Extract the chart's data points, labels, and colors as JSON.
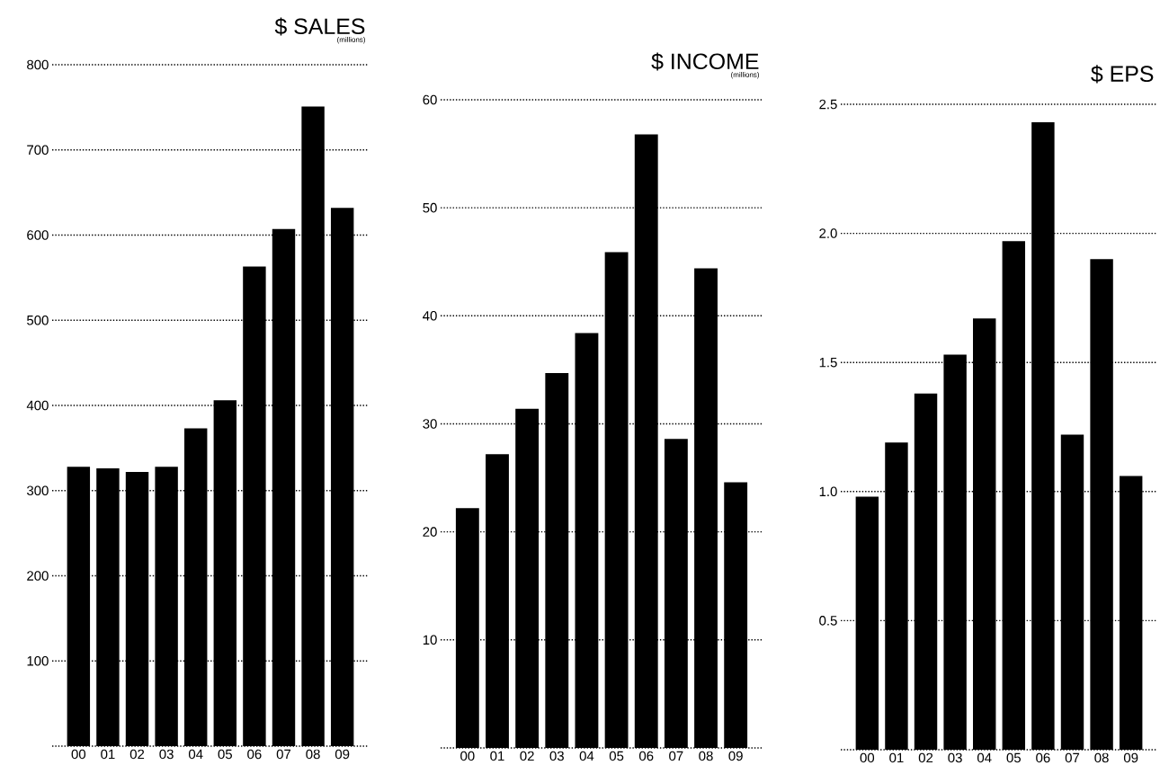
{
  "chart_data": [
    {
      "type": "bar",
      "title": "$ SALES",
      "subtitle": "(millions)",
      "categories": [
        "00",
        "01",
        "02",
        "03",
        "04",
        "05",
        "06",
        "07",
        "08",
        "09"
      ],
      "values": [
        328,
        326,
        322,
        328,
        373,
        406,
        563,
        607,
        751,
        632
      ],
      "color": "#000000",
      "ylim": [
        0,
        800
      ],
      "yticks": [
        100,
        200,
        300,
        400,
        500,
        600,
        700,
        800
      ],
      "grid": "y"
    },
    {
      "type": "bar",
      "title": "$ INCOME",
      "subtitle": "(millions)",
      "categories": [
        "00",
        "01",
        "02",
        "03",
        "04",
        "05",
        "06",
        "07",
        "08",
        "09"
      ],
      "values": [
        22.2,
        27.2,
        31.4,
        34.7,
        38.4,
        45.9,
        56.8,
        28.6,
        44.4,
        24.6
      ],
      "color": "#000000",
      "ylim": [
        0,
        60
      ],
      "yticks": [
        10,
        20,
        30,
        40,
        50,
        60
      ],
      "grid": "y"
    },
    {
      "type": "bar",
      "title": "$ EPS",
      "categories": [
        "00",
        "01",
        "02",
        "03",
        "04",
        "05",
        "06",
        "07",
        "08",
        "09"
      ],
      "values": [
        0.98,
        1.19,
        1.38,
        1.53,
        1.67,
        1.97,
        2.43,
        1.22,
        1.9,
        1.06
      ],
      "color": "#000000",
      "ylim": [
        0,
        2.5
      ],
      "yticks": [
        0.5,
        "1.0",
        1.5,
        "2.0",
        2.5
      ],
      "grid": "y"
    }
  ]
}
